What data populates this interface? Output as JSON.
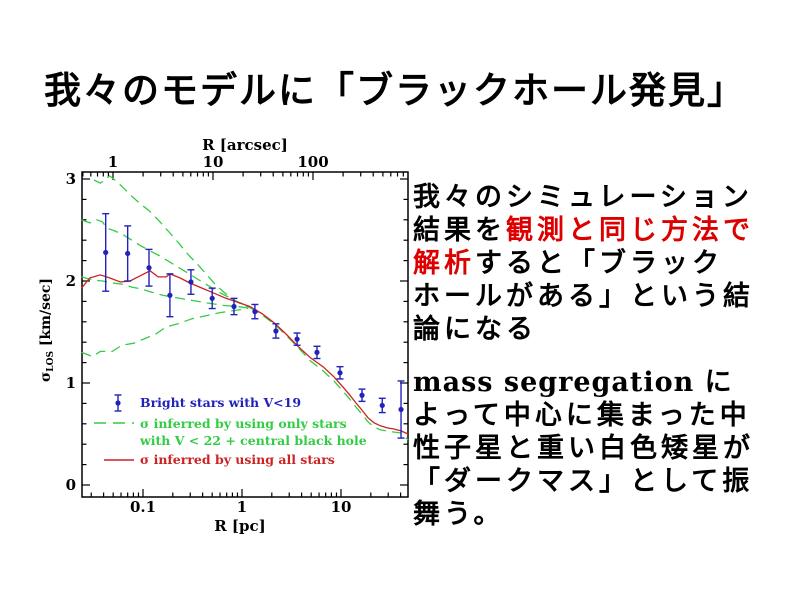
{
  "slide": {
    "background": "#ffffff",
    "title": "我々のモデルに「ブラックホール発見」",
    "p1": {
      "l1": "我々のシミュレーション",
      "l2_black": "結果を",
      "l2_red": "観測と同じ方法で",
      "l3_red": "解析",
      "l3_black": "すると「ブラック",
      "l4": "ホールがある」という結",
      "l5": "論になる"
    },
    "p2": {
      "l1": "mass segregation に",
      "l2": "よって中心に集まった中",
      "l3": "性子星と重い白色矮星が",
      "l4": "「ダークマス」として振",
      "l5": "舞う。"
    },
    "colors": {
      "text": "#000000",
      "highlight_red": "#dd0000"
    }
  },
  "chart_data": {
    "type": "scatter",
    "title": "",
    "x_axis_bottom": {
      "label": "R [pc]",
      "ticks": [
        0.1,
        1,
        10
      ],
      "range": [
        0.024,
        47.5
      ],
      "scale": "log"
    },
    "x_axis_top": {
      "label": "R [arcsec]",
      "ticks": [
        1,
        10,
        100
      ],
      "range": [
        0.49,
        890
      ],
      "scale": "log"
    },
    "y_axis": {
      "label_sigma": "σ",
      "label_sub": "LOS",
      "label_units": " [km/sec]",
      "ticks": [
        0,
        1,
        2,
        3
      ],
      "minor_step": 0.2,
      "range": [
        -0.12,
        3.07
      ]
    },
    "colors": {
      "points": "#2222bb",
      "green": "#33cc44",
      "red": "#cc2222",
      "axis": "#000000"
    },
    "points": {
      "name": "Bright stars with V<19",
      "data": [
        [
          0.042,
          2.28,
          0.38
        ],
        [
          0.07,
          2.27,
          0.27
        ],
        [
          0.115,
          2.13,
          0.18
        ],
        [
          0.187,
          1.86,
          0.21
        ],
        [
          0.305,
          1.99,
          0.12
        ],
        [
          0.5,
          1.83,
          0.1
        ],
        [
          0.83,
          1.75,
          0.08
        ],
        [
          1.35,
          1.7,
          0.07
        ],
        [
          2.2,
          1.51,
          0.07
        ],
        [
          3.6,
          1.43,
          0.06
        ],
        [
          5.72,
          1.3,
          0.06
        ],
        [
          9.77,
          1.1,
          0.06
        ],
        [
          16.3,
          0.88,
          0.06
        ],
        [
          26.1,
          0.78,
          0.07
        ],
        [
          40.4,
          0.74,
          0.28
        ]
      ]
    },
    "green_curves": {
      "name": "σ inferred by using only stars with V < 22 + central black hole",
      "style": "dashed",
      "series": [
        [
          [
            0.032,
            2.99
          ],
          [
            0.037,
            2.96
          ],
          [
            0.041,
            2.99
          ],
          [
            0.046,
            3.03
          ],
          [
            0.052,
            2.99
          ],
          [
            0.064,
            2.91
          ],
          [
            0.077,
            2.83
          ],
          [
            0.093,
            2.76
          ],
          [
            0.115,
            2.69
          ],
          [
            0.145,
            2.59
          ],
          [
            0.183,
            2.48
          ],
          [
            0.231,
            2.37
          ],
          [
            0.285,
            2.26
          ],
          [
            0.351,
            2.17
          ],
          [
            0.433,
            2.07
          ],
          [
            0.534,
            1.97
          ],
          [
            0.658,
            1.89
          ],
          [
            0.811,
            1.82
          ],
          [
            1.0,
            1.77
          ],
          [
            1.2,
            1.74
          ]
        ],
        [
          [
            0.024,
            2.6
          ],
          [
            0.029,
            2.57
          ],
          [
            0.034,
            2.6
          ],
          [
            0.039,
            2.58
          ],
          [
            0.043,
            2.52
          ],
          [
            0.052,
            2.49
          ],
          [
            0.064,
            2.45
          ],
          [
            0.077,
            2.4
          ],
          [
            0.093,
            2.35
          ],
          [
            0.115,
            2.3
          ],
          [
            0.145,
            2.25
          ],
          [
            0.183,
            2.19
          ],
          [
            0.231,
            2.13
          ],
          [
            0.292,
            2.07
          ],
          [
            0.368,
            2.01
          ],
          [
            0.464,
            1.95
          ],
          [
            0.586,
            1.89
          ],
          [
            0.738,
            1.84
          ],
          [
            0.933,
            1.79
          ],
          [
            1.18,
            1.75
          ]
        ],
        [
          [
            0.024,
            2.04
          ],
          [
            0.031,
            2.01
          ],
          [
            0.039,
            2.0
          ],
          [
            0.049,
            1.98
          ],
          [
            0.061,
            1.97
          ],
          [
            0.077,
            1.94
          ],
          [
            0.098,
            1.92
          ],
          [
            0.123,
            1.89
          ],
          [
            0.159,
            1.86
          ],
          [
            0.205,
            1.84
          ],
          [
            0.272,
            1.82
          ],
          [
            0.359,
            1.8
          ],
          [
            0.475,
            1.78
          ],
          [
            0.658,
            1.76
          ],
          [
            0.911,
            1.75
          ],
          [
            1.2,
            1.73
          ]
        ],
        [
          [
            0.024,
            1.3
          ],
          [
            0.031,
            1.26
          ],
          [
            0.037,
            1.31
          ],
          [
            0.049,
            1.31
          ],
          [
            0.061,
            1.37
          ],
          [
            0.081,
            1.39
          ],
          [
            0.107,
            1.44
          ],
          [
            0.135,
            1.48
          ],
          [
            0.171,
            1.55
          ],
          [
            0.225,
            1.58
          ],
          [
            0.313,
            1.63
          ],
          [
            0.433,
            1.66
          ],
          [
            0.6,
            1.69
          ],
          [
            0.83,
            1.71
          ],
          [
            1.15,
            1.73
          ]
        ],
        [
          [
            1.2,
            1.74
          ],
          [
            1.59,
            1.67
          ],
          [
            2.11,
            1.58
          ],
          [
            2.78,
            1.47
          ],
          [
            3.68,
            1.35
          ],
          [
            4.87,
            1.22
          ],
          [
            6.58,
            1.12
          ],
          [
            8.5,
            1.02
          ],
          [
            10.7,
            0.91
          ],
          [
            12.3,
            0.84
          ],
          [
            14.0,
            0.77
          ],
          [
            16.1,
            0.7
          ],
          [
            18.7,
            0.62
          ],
          [
            21.6,
            0.57
          ],
          [
            25.0,
            0.54
          ],
          [
            29.2,
            0.53
          ],
          [
            33.9,
            0.52
          ],
          [
            40.4,
            0.51
          ],
          [
            43.9,
            0.48
          ],
          [
            47.5,
            0.44
          ]
        ]
      ]
    },
    "red_curve": {
      "name": "σ inferred by using all stars",
      "style": "solid",
      "data": [
        [
          0.024,
          1.93
        ],
        [
          0.029,
          2.03
        ],
        [
          0.037,
          2.06
        ],
        [
          0.046,
          2.03
        ],
        [
          0.059,
          1.99
        ],
        [
          0.074,
          2.0
        ],
        [
          0.093,
          2.05
        ],
        [
          0.118,
          2.1
        ],
        [
          0.142,
          2.04
        ],
        [
          0.171,
          2.04
        ],
        [
          0.187,
          2.07
        ],
        [
          0.236,
          2.03
        ],
        [
          0.298,
          1.98
        ],
        [
          0.394,
          1.93
        ],
        [
          0.521,
          1.88
        ],
        [
          0.689,
          1.83
        ],
        [
          0.911,
          1.79
        ],
        [
          1.2,
          1.75
        ],
        [
          1.59,
          1.68
        ],
        [
          2.11,
          1.59
        ],
        [
          2.78,
          1.48
        ],
        [
          3.68,
          1.36
        ],
        [
          4.87,
          1.25
        ],
        [
          6.58,
          1.16
        ],
        [
          8.5,
          1.06
        ],
        [
          10.7,
          0.95
        ],
        [
          12.3,
          0.88
        ],
        [
          14.0,
          0.81
        ],
        [
          16.1,
          0.74
        ],
        [
          18.7,
          0.66
        ],
        [
          21.6,
          0.61
        ],
        [
          25.0,
          0.58
        ],
        [
          29.2,
          0.56
        ],
        [
          33.9,
          0.55
        ],
        [
          40.4,
          0.53
        ],
        [
          47.5,
          0.5
        ]
      ]
    },
    "legend": [
      {
        "marker": "point",
        "color": "#2222bb",
        "label": "Bright stars with V<19"
      },
      {
        "marker": "dashed",
        "color": "#33cc44",
        "label": "σ inferred by using only stars",
        "label2": "with V < 22 + central black hole"
      },
      {
        "marker": "solid",
        "color": "#cc2222",
        "label": "σ inferred by using all stars"
      }
    ]
  }
}
